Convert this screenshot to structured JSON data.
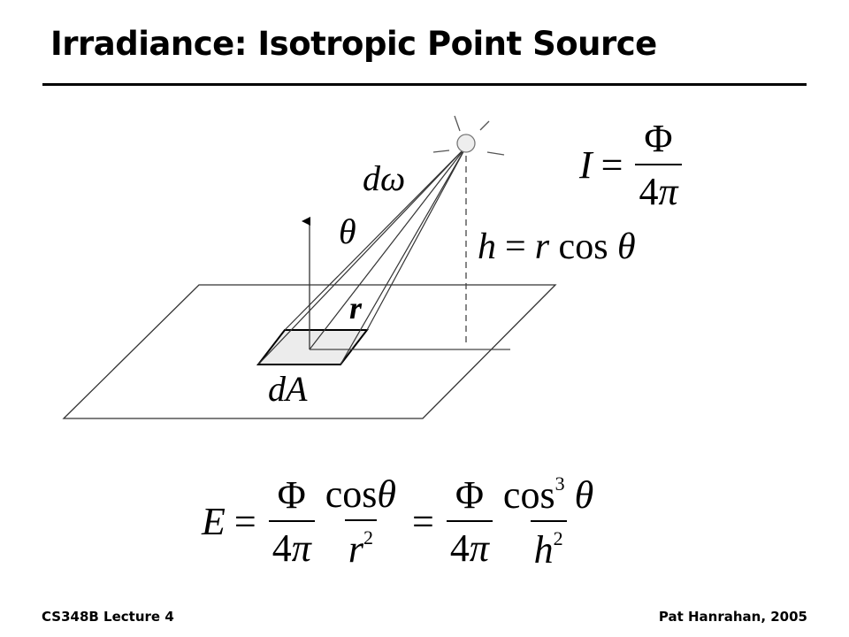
{
  "slide": {
    "title": "Irradiance: Isotropic Point Source",
    "footer_left": "CS348B Lecture 4",
    "footer_right": "Pat Hanrahan, 2005"
  },
  "diagram": {
    "label_domega": "dω",
    "label_theta": "θ",
    "label_r": "r",
    "label_dA": "dA",
    "h_eq": {
      "lhs": "h",
      "eq": "=",
      "r": "r",
      "cos": "cos",
      "theta": "θ"
    }
  },
  "intensity_eq": {
    "lhs": "I",
    "eq": "=",
    "num": "Φ",
    "den_4": "4",
    "den_pi": "π"
  },
  "irradiance_eq": {
    "lhs": "E",
    "eq1": "=",
    "eq2": "=",
    "f1_num": "Φ",
    "f1_den_4": "4",
    "f1_den_pi": "π",
    "f2_num_cos": "cos",
    "f2_num_theta": "θ",
    "f2_den_r": "r",
    "f2_den_exp": "2",
    "f3_num": "Φ",
    "f3_den_4": "4",
    "f3_den_pi": "π",
    "f4_num_cos": "cos",
    "f4_num_exp": "3",
    "f4_num_theta": "θ",
    "f4_den_h": "h",
    "f4_den_exp": "2"
  }
}
